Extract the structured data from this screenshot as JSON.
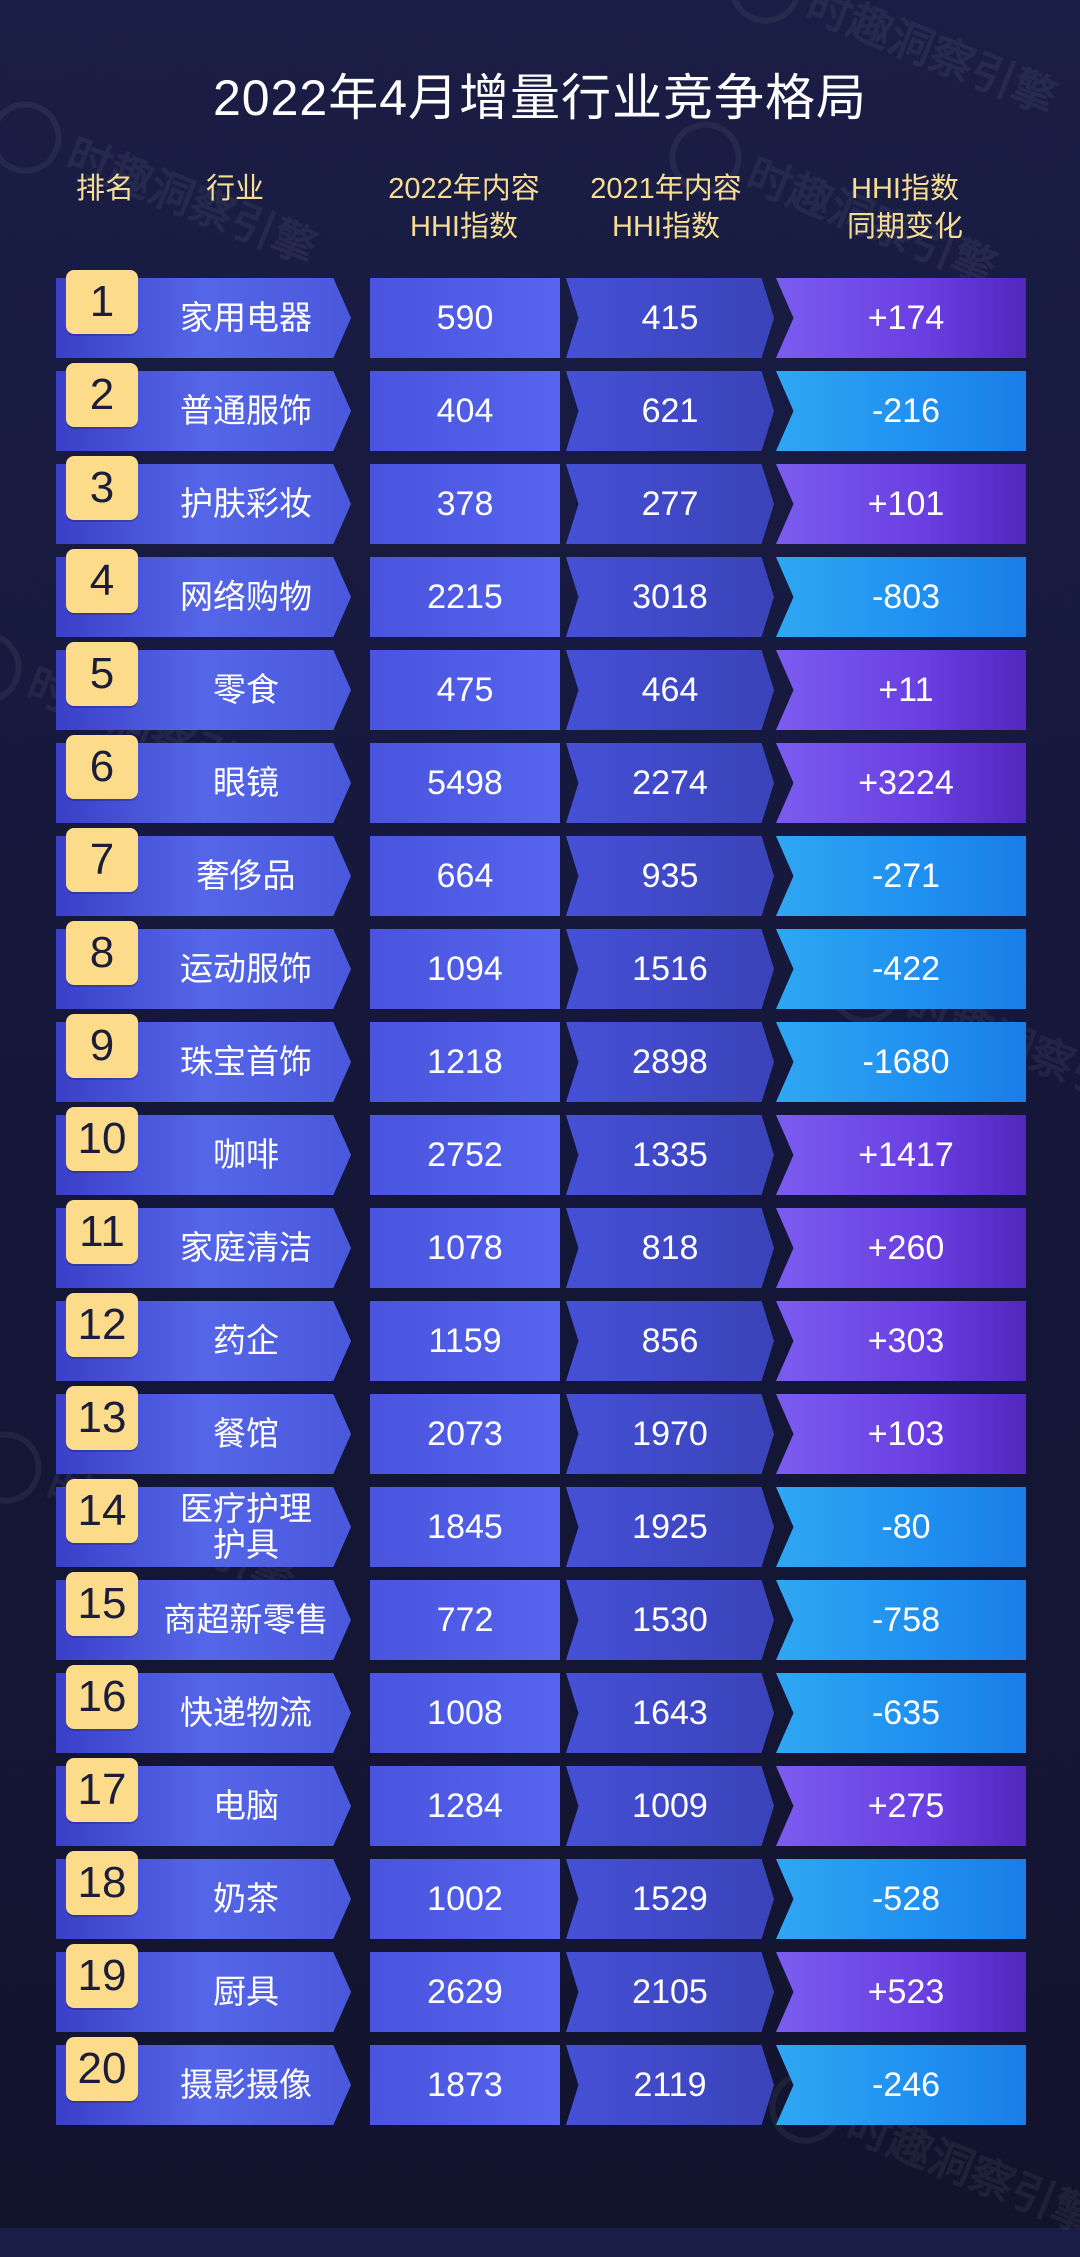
{
  "watermark": "时趣洞察引擎",
  "title": "2022年4月增量行业竞争格局",
  "headers": {
    "rank": "排名",
    "industry": "行业",
    "hhi2022_l1": "2022年内容",
    "hhi2022_l2": "HHI指数",
    "hhi2021_l1": "2021年内容",
    "hhi2021_l2": "HHI指数",
    "change_l1": "HHI指数",
    "change_l2": "同期变化"
  },
  "colors": {
    "rank_badge": "#fcdc8a",
    "header_text": "#f6dd93",
    "positive_change": "#6a3ee0",
    "negative_change": "#1f8ff0"
  },
  "chart_data": {
    "type": "table",
    "title": "2022年4月增量行业竞争格局",
    "columns": [
      "排名",
      "行业",
      "2022年内容HHI指数",
      "2021年内容HHI指数",
      "HHI指数同期变化"
    ],
    "rows": [
      {
        "rank": "1",
        "industry": "家用电器",
        "hhi2022": "590",
        "hhi2021": "415",
        "change": "+174"
      },
      {
        "rank": "2",
        "industry": "普通服饰",
        "hhi2022": "404",
        "hhi2021": "621",
        "change": "-216"
      },
      {
        "rank": "3",
        "industry": "护肤彩妆",
        "hhi2022": "378",
        "hhi2021": "277",
        "change": "+101"
      },
      {
        "rank": "4",
        "industry": "网络购物",
        "hhi2022": "2215",
        "hhi2021": "3018",
        "change": "-803"
      },
      {
        "rank": "5",
        "industry": "零食",
        "hhi2022": "475",
        "hhi2021": "464",
        "change": "+11"
      },
      {
        "rank": "6",
        "industry": "眼镜",
        "hhi2022": "5498",
        "hhi2021": "2274",
        "change": "+3224"
      },
      {
        "rank": "7",
        "industry": "奢侈品",
        "hhi2022": "664",
        "hhi2021": "935",
        "change": "-271"
      },
      {
        "rank": "8",
        "industry": "运动服饰",
        "hhi2022": "1094",
        "hhi2021": "1516",
        "change": "-422"
      },
      {
        "rank": "9",
        "industry": "珠宝首饰",
        "hhi2022": "1218",
        "hhi2021": "2898",
        "change": "-1680"
      },
      {
        "rank": "10",
        "industry": "咖啡",
        "hhi2022": "2752",
        "hhi2021": "1335",
        "change": "+1417"
      },
      {
        "rank": "11",
        "industry": "家庭清洁",
        "hhi2022": "1078",
        "hhi2021": "818",
        "change": "+260"
      },
      {
        "rank": "12",
        "industry": "药企",
        "hhi2022": "1159",
        "hhi2021": "856",
        "change": "+303"
      },
      {
        "rank": "13",
        "industry": "餐馆",
        "hhi2022": "2073",
        "hhi2021": "1970",
        "change": "+103"
      },
      {
        "rank": "14",
        "industry": "医疗护理护具",
        "industry_l1": "医疗护理",
        "industry_l2": "护具",
        "hhi2022": "1845",
        "hhi2021": "1925",
        "change": "-80"
      },
      {
        "rank": "15",
        "industry": "商超新零售",
        "hhi2022": "772",
        "hhi2021": "1530",
        "change": "-758"
      },
      {
        "rank": "16",
        "industry": "快递物流",
        "hhi2022": "1008",
        "hhi2021": "1643",
        "change": "-635"
      },
      {
        "rank": "17",
        "industry": "电脑",
        "hhi2022": "1284",
        "hhi2021": "1009",
        "change": "+275"
      },
      {
        "rank": "18",
        "industry": "奶茶",
        "hhi2022": "1002",
        "hhi2021": "1529",
        "change": "-528"
      },
      {
        "rank": "19",
        "industry": "厨具",
        "hhi2022": "2629",
        "hhi2021": "2105",
        "change": "+523"
      },
      {
        "rank": "20",
        "industry": "摄影摄像",
        "hhi2022": "1873",
        "hhi2021": "2119",
        "change": "-246"
      }
    ]
  }
}
